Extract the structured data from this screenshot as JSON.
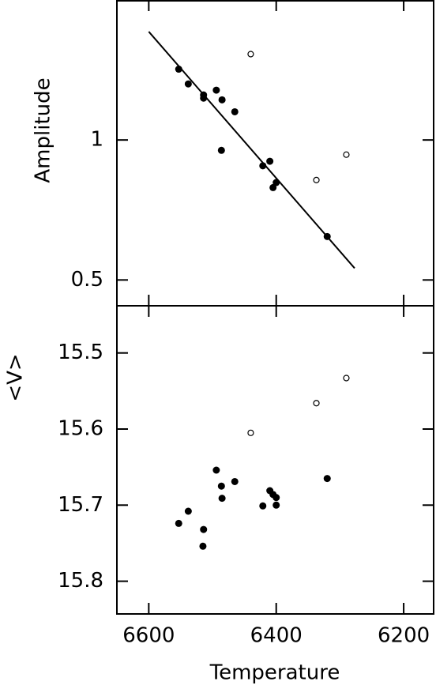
{
  "chart_data": [
    {
      "type": "scatter",
      "y_label": "Amplitude",
      "log_y": true,
      "xlim": [
        6650,
        6153
      ],
      "xticks": [
        6600,
        6400,
        6200
      ],
      "ylim": [
        0.44,
        2.0
      ],
      "yticks": [
        0.5,
        1
      ],
      "series": [
        {
          "color": "#000000",
          "marker": "filled",
          "x": [
            6553,
            6538,
            6514,
            6514,
            6494,
            6485,
            6465,
            6486,
            6421,
            6410,
            6405,
            6400,
            6320
          ],
          "values": [
            1.42,
            1.32,
            1.25,
            1.23,
            1.28,
            1.22,
            1.15,
            0.95,
            0.88,
            0.9,
            0.79,
            0.81,
            0.62
          ]
        },
        {
          "color": "#000000",
          "marker": "open",
          "x": [
            6440,
            6337,
            6290
          ],
          "values": [
            1.53,
            0.82,
            0.93
          ]
        },
        {
          "color": "#000000",
          "marker": "line",
          "x": [
            6600,
            6277
          ],
          "values": [
            1.71,
            0.53
          ]
        }
      ]
    },
    {
      "type": "scatter",
      "y_label": "<V>",
      "x_label": "Temperature",
      "xlim": [
        6650,
        6153
      ],
      "xticks": [
        6600,
        6400,
        6200
      ],
      "ylim": [
        15.843,
        15.438
      ],
      "yticks": [
        15.5,
        15.6,
        15.7,
        15.8
      ],
      "series": [
        {
          "color": "#000000",
          "marker": "filled",
          "x": [
            6553,
            6538,
            6514,
            6515,
            6494,
            6486,
            6485,
            6465,
            6421,
            6410,
            6405,
            6400,
            6400,
            6320
          ],
          "values": [
            15.724,
            15.708,
            15.732,
            15.754,
            15.654,
            15.675,
            15.691,
            15.669,
            15.701,
            15.681,
            15.686,
            15.69,
            15.7,
            15.665
          ]
        },
        {
          "color": "#000000",
          "marker": "open",
          "x": [
            6440,
            6337,
            6290
          ],
          "values": [
            15.605,
            15.566,
            15.533
          ]
        }
      ]
    }
  ]
}
